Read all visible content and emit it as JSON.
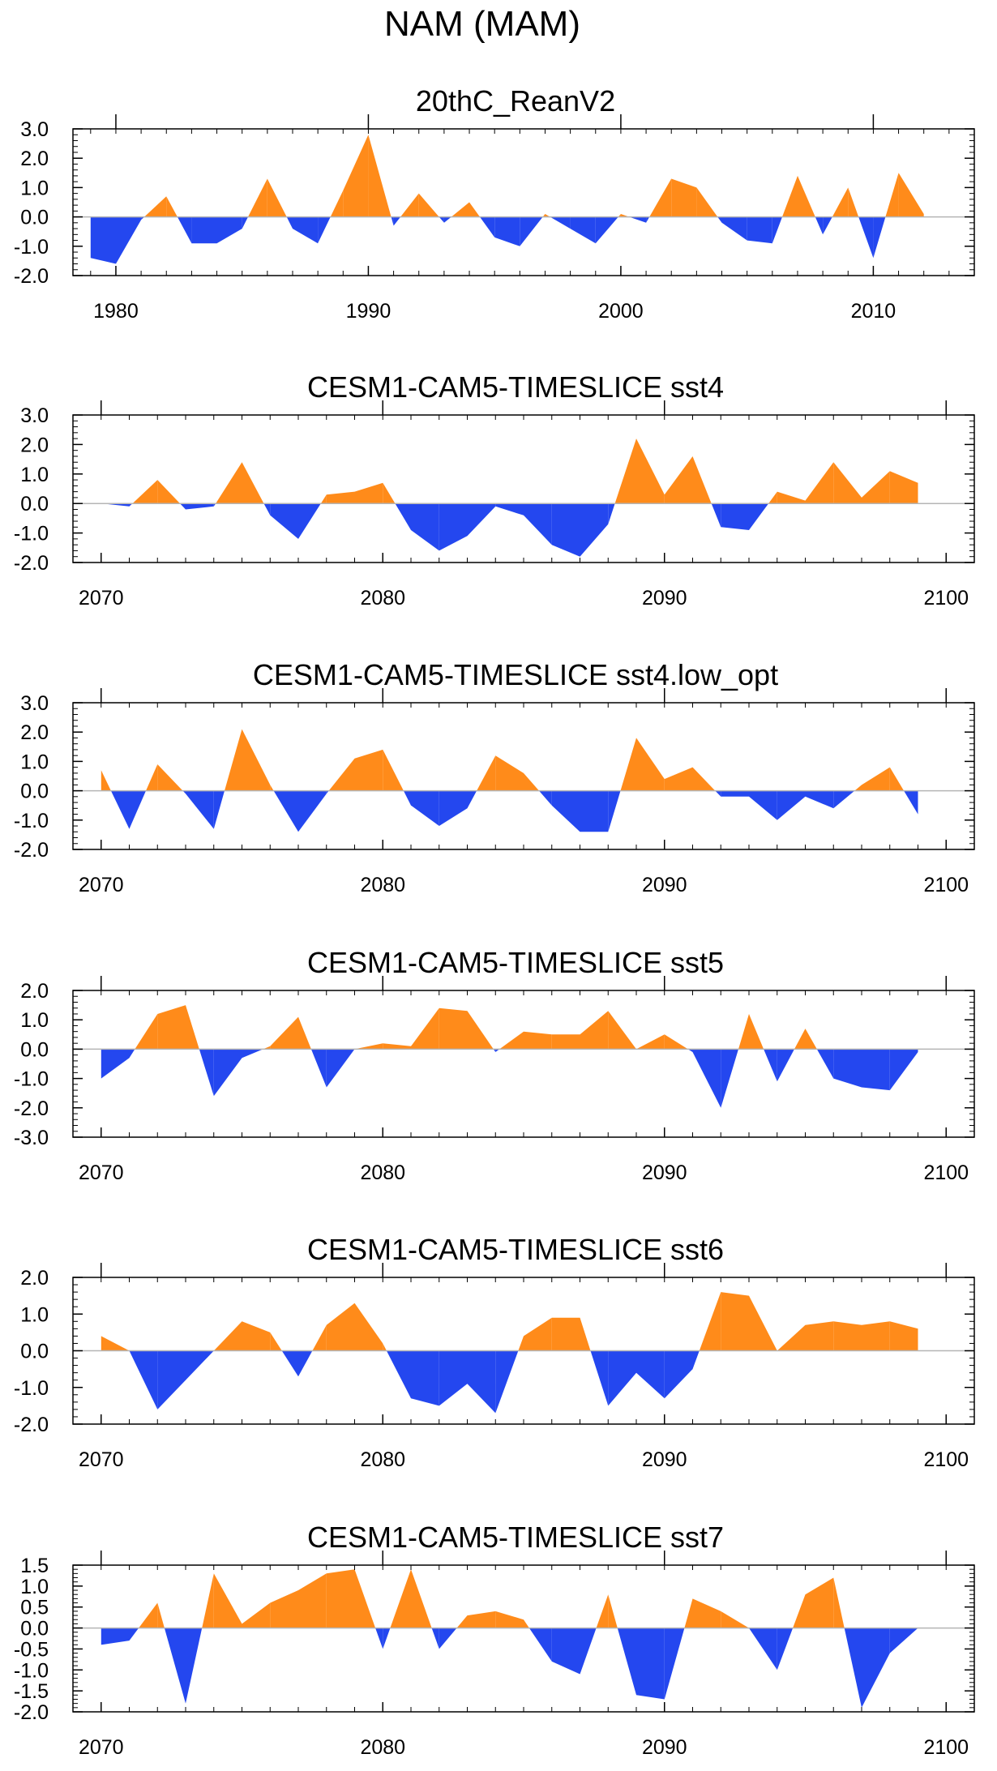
{
  "title": "NAM (MAM)",
  "colors": {
    "positive": "#ff8b1a",
    "negative": "#2447ef",
    "axis": "#000000",
    "zero_line": "#b5b5b5"
  },
  "chart_data": [
    {
      "type": "area",
      "title": "20thC_ReanV2",
      "xlim": [
        1978.3,
        2014
      ],
      "ylim": [
        -2.0,
        3.0
      ],
      "yticks": [
        -2.0,
        -1.0,
        0.0,
        1.0,
        2.0,
        3.0
      ],
      "ytick_labels": [
        "-2.0",
        "-1.0",
        "0.0",
        "1.0",
        "2.0",
        "3.0"
      ],
      "xticks": [
        1980,
        1990,
        2000,
        2010
      ],
      "xtick_labels": [
        "1980",
        "1990",
        "2000",
        "2010"
      ],
      "x": [
        1979,
        1980,
        1981,
        1982,
        1983,
        1984,
        1985,
        1986,
        1987,
        1988,
        1989,
        1990,
        1991,
        1992,
        1993,
        1994,
        1995,
        1996,
        1997,
        1998,
        1999,
        2000,
        2001,
        2002,
        2003,
        2004,
        2005,
        2006,
        2007,
        2008,
        2009,
        2010,
        2011,
        2012
      ],
      "values": [
        -1.4,
        -1.6,
        -0.1,
        0.7,
        -0.9,
        -0.9,
        -0.4,
        1.3,
        -0.4,
        -0.9,
        0.9,
        2.8,
        -0.3,
        0.8,
        -0.2,
        0.5,
        -0.7,
        -1.0,
        0.1,
        -0.4,
        -0.9,
        0.1,
        -0.2,
        1.3,
        1.0,
        -0.2,
        -0.8,
        -0.9,
        1.4,
        -0.6,
        1.0,
        -1.4,
        1.5,
        0.1
      ]
    },
    {
      "type": "area",
      "title": "CESM1-CAM5-TIMESLICE sst4",
      "xlim": [
        2069,
        2101
      ],
      "ylim": [
        -2.0,
        3.0
      ],
      "yticks": [
        -2.0,
        -1.0,
        0.0,
        1.0,
        2.0,
        3.0
      ],
      "ytick_labels": [
        "-2.0",
        "-1.0",
        "0.0",
        "1.0",
        "2.0",
        "3.0"
      ],
      "xticks": [
        2070,
        2080,
        2090,
        2100
      ],
      "xtick_labels": [
        "2070",
        "2080",
        "2090",
        "2100"
      ],
      "x": [
        2070,
        2071,
        2072,
        2073,
        2074,
        2075,
        2076,
        2077,
        2078,
        2079,
        2080,
        2081,
        2082,
        2083,
        2084,
        2085,
        2086,
        2087,
        2088,
        2089,
        2090,
        2091,
        2092,
        2093,
        2094,
        2095,
        2096,
        2097,
        2098,
        2099
      ],
      "values": [
        0.0,
        -0.1,
        0.8,
        -0.2,
        -0.1,
        1.4,
        -0.4,
        -1.2,
        0.3,
        0.4,
        0.7,
        -0.9,
        -1.6,
        -1.1,
        -0.1,
        -0.4,
        -1.4,
        -1.8,
        -0.7,
        2.2,
        0.3,
        1.6,
        -0.8,
        -0.9,
        0.4,
        0.1,
        1.4,
        0.2,
        1.1,
        0.7
      ]
    },
    {
      "type": "area",
      "title": "CESM1-CAM5-TIMESLICE sst4.low_opt",
      "xlim": [
        2069,
        2101
      ],
      "ylim": [
        -2.0,
        3.0
      ],
      "yticks": [
        -2.0,
        -1.0,
        0.0,
        1.0,
        2.0,
        3.0
      ],
      "ytick_labels": [
        "-2.0",
        "-1.0",
        "0.0",
        "1.0",
        "2.0",
        "3.0"
      ],
      "xticks": [
        2070,
        2080,
        2090,
        2100
      ],
      "xtick_labels": [
        "2070",
        "2080",
        "2090",
        "2100"
      ],
      "x": [
        2070,
        2071,
        2072,
        2073,
        2074,
        2075,
        2076,
        2077,
        2078,
        2079,
        2080,
        2081,
        2082,
        2083,
        2084,
        2085,
        2086,
        2087,
        2088,
        2089,
        2090,
        2091,
        2092,
        2093,
        2094,
        2095,
        2096,
        2097,
        2098,
        2099
      ],
      "values": [
        0.7,
        -1.3,
        0.9,
        -0.1,
        -1.3,
        2.1,
        0.2,
        -1.4,
        -0.1,
        1.1,
        1.4,
        -0.5,
        -1.2,
        -0.6,
        1.2,
        0.6,
        -0.5,
        -1.4,
        -1.4,
        1.8,
        0.4,
        0.8,
        -0.2,
        -0.2,
        -1.0,
        -0.2,
        -0.6,
        0.2,
        0.8,
        -0.8
      ]
    },
    {
      "type": "area",
      "title": "CESM1-CAM5-TIMESLICE sst5",
      "xlim": [
        2069,
        2101
      ],
      "ylim": [
        -3.0,
        2.0
      ],
      "yticks": [
        -3.0,
        -2.0,
        -1.0,
        0.0,
        1.0,
        2.0
      ],
      "ytick_labels": [
        "-3.0",
        "-2.0",
        "-1.0",
        "0.0",
        "1.0",
        "2.0"
      ],
      "xticks": [
        2070,
        2080,
        2090,
        2100
      ],
      "xtick_labels": [
        "2070",
        "2080",
        "2090",
        "2100"
      ],
      "x": [
        2070,
        2071,
        2072,
        2073,
        2074,
        2075,
        2076,
        2077,
        2078,
        2079,
        2080,
        2081,
        2082,
        2083,
        2084,
        2085,
        2086,
        2087,
        2088,
        2089,
        2090,
        2091,
        2092,
        2093,
        2094,
        2095,
        2096,
        2097,
        2098,
        2099
      ],
      "values": [
        -1.0,
        -0.3,
        1.2,
        1.5,
        -1.6,
        -0.3,
        0.1,
        1.1,
        -1.3,
        0.0,
        0.2,
        0.1,
        1.4,
        1.3,
        -0.1,
        0.6,
        0.5,
        0.5,
        1.3,
        0.0,
        0.5,
        -0.1,
        -2.0,
        1.2,
        -1.1,
        0.7,
        -1.0,
        -1.3,
        -1.4,
        -0.1
      ]
    },
    {
      "type": "area",
      "title": "CESM1-CAM5-TIMESLICE sst6",
      "xlim": [
        2069,
        2101
      ],
      "ylim": [
        -2.0,
        2.0
      ],
      "yticks": [
        -2.0,
        -1.0,
        0.0,
        1.0,
        2.0
      ],
      "ytick_labels": [
        "-2.0",
        "-1.0",
        "0.0",
        "1.0",
        "2.0"
      ],
      "xticks": [
        2070,
        2080,
        2090,
        2100
      ],
      "xtick_labels": [
        "2070",
        "2080",
        "2090",
        "2100"
      ],
      "x": [
        2070,
        2071,
        2072,
        2073,
        2074,
        2075,
        2076,
        2077,
        2078,
        2079,
        2080,
        2081,
        2082,
        2083,
        2084,
        2085,
        2086,
        2087,
        2088,
        2089,
        2090,
        2091,
        2092,
        2093,
        2094,
        2095,
        2096,
        2097,
        2098,
        2099
      ],
      "values": [
        0.4,
        0.0,
        -1.6,
        -0.8,
        0.0,
        0.8,
        0.5,
        -0.7,
        0.7,
        1.3,
        0.2,
        -1.3,
        -1.5,
        -0.9,
        -1.7,
        0.4,
        0.9,
        0.9,
        -1.5,
        -0.6,
        -1.3,
        -0.5,
        1.6,
        1.5,
        0.0,
        0.7,
        0.8,
        0.7,
        0.8,
        0.6
      ]
    },
    {
      "type": "area",
      "title": "CESM1-CAM5-TIMESLICE sst7",
      "xlim": [
        2069,
        2101
      ],
      "ylim": [
        -2.0,
        1.5
      ],
      "yticks": [
        -2.0,
        -1.5,
        -1.0,
        -0.5,
        0.0,
        0.5,
        1.0,
        1.5
      ],
      "ytick_labels": [
        "-2.0",
        "-1.5",
        "-1.0",
        "-0.5",
        "0.0",
        "0.5",
        "1.0",
        "1.5"
      ],
      "xticks": [
        2070,
        2080,
        2090,
        2100
      ],
      "xtick_labels": [
        "2070",
        "2080",
        "2090",
        "2100"
      ],
      "x": [
        2070,
        2071,
        2072,
        2073,
        2074,
        2075,
        2076,
        2077,
        2078,
        2079,
        2080,
        2081,
        2082,
        2083,
        2084,
        2085,
        2086,
        2087,
        2088,
        2089,
        2090,
        2091,
        2092,
        2093,
        2094,
        2095,
        2096,
        2097,
        2098,
        2099
      ],
      "values": [
        -0.4,
        -0.3,
        0.6,
        -1.8,
        1.3,
        0.1,
        0.6,
        0.9,
        1.3,
        1.4,
        -0.5,
        1.4,
        -0.5,
        0.3,
        0.4,
        0.2,
        -0.8,
        -1.1,
        0.8,
        -1.6,
        -1.7,
        0.7,
        0.4,
        0.0,
        -1.0,
        0.8,
        1.2,
        -1.9,
        -0.6,
        0.0
      ]
    }
  ]
}
